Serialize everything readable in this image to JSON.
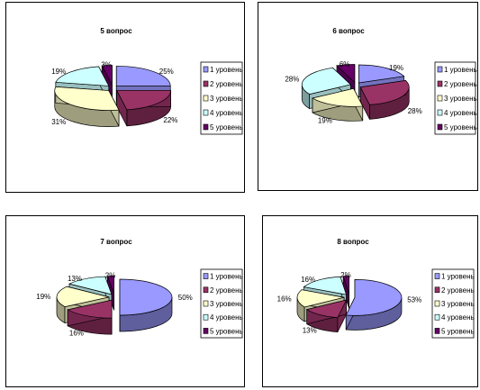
{
  "chart_data": [
    {
      "type": "pie",
      "title": "5 вопрос",
      "categories": [
        "1 уровень",
        "2 уровень",
        "3 уровень",
        "4 уровень",
        "5 уровень"
      ],
      "values": [
        25,
        22,
        31,
        19,
        3
      ],
      "labels": [
        "25%",
        "22%",
        "31%",
        "19%",
        "3%"
      ],
      "exploded": true,
      "three_d": true,
      "legend": "right"
    },
    {
      "type": "pie",
      "title": "6 вопрос",
      "categories": [
        "1 уровень",
        "2 уровень",
        "3 уровень",
        "4 уровень",
        "5 уровень"
      ],
      "values": [
        19,
        28,
        19,
        28,
        6
      ],
      "labels": [
        "19%",
        "28%",
        "19%",
        "28%",
        "6%"
      ],
      "exploded": true,
      "three_d": true,
      "legend": "right"
    },
    {
      "type": "pie",
      "title": "7 вопрос",
      "categories": [
        "1 уровень",
        "2 уровень",
        "3 уровень",
        "4 уровень",
        "5 уровень"
      ],
      "values": [
        50,
        16,
        19,
        13,
        2
      ],
      "labels": [
        "50%",
        "16%",
        "19%",
        "13%",
        "2%"
      ],
      "exploded": true,
      "three_d": true,
      "legend": "right"
    },
    {
      "type": "pie",
      "title": "8 вопрос",
      "categories": [
        "1 уровень",
        "2 уровень",
        "3 уровень",
        "4 уровень",
        "5 уровень"
      ],
      "values": [
        53,
        13,
        16,
        16,
        2
      ],
      "labels": [
        "53%",
        "13%",
        "16%",
        "16%",
        "2%"
      ],
      "exploded": true,
      "three_d": true,
      "legend": "right"
    }
  ],
  "colors": {
    "slices": [
      "#9999ff",
      "#993366",
      "#ffffcc",
      "#ccffff",
      "#660066"
    ],
    "outline": "#000000"
  }
}
